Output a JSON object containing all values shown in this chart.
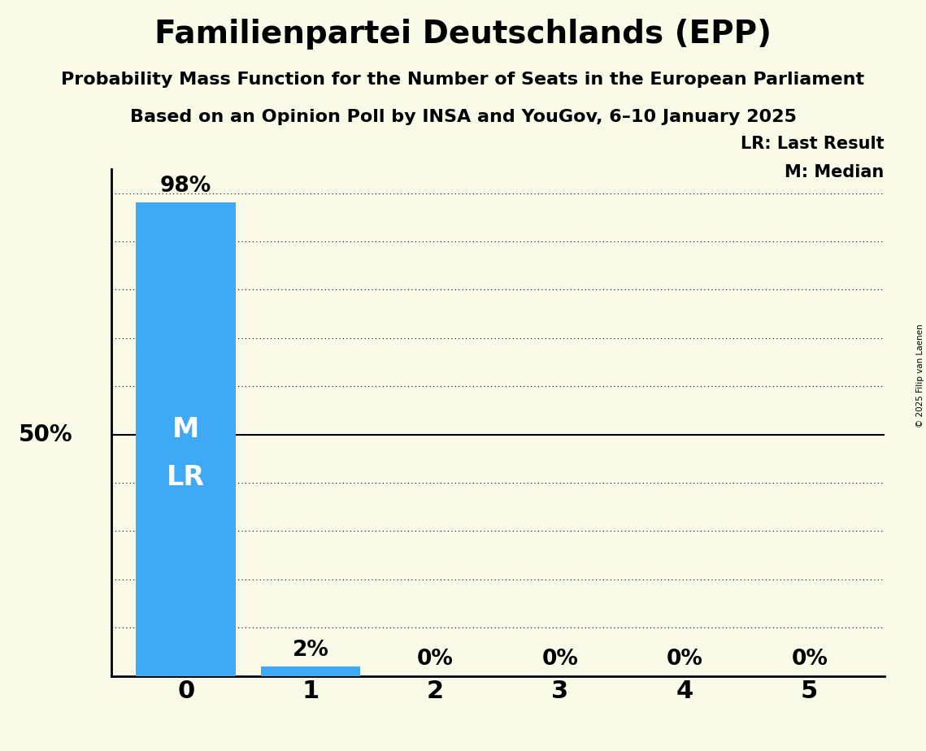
{
  "title": "Familienpartei Deutschlands (EPP)",
  "subtitle1": "Probability Mass Function for the Number of Seats in the European Parliament",
  "subtitle2": "Based on an Opinion Poll by INSA and YouGov, 6–10 January 2025",
  "copyright": "© 2025 Filip van Laenen",
  "categories": [
    0,
    1,
    2,
    3,
    4,
    5
  ],
  "values": [
    0.98,
    0.02,
    0.0,
    0.0,
    0.0,
    0.0
  ],
  "labels": [
    "98%",
    "2%",
    "0%",
    "0%",
    "0%",
    "0%"
  ],
  "bar_color": "#3fa9f5",
  "background_color": "#FAFAE8",
  "median": 0,
  "last_result": 0,
  "median_label": "M",
  "last_result_label": "LR",
  "legend_lr": "LR: Last Result",
  "legend_m": "M: Median",
  "yticks": [
    0.0,
    0.1,
    0.2,
    0.3,
    0.4,
    0.5,
    0.6,
    0.7,
    0.8,
    0.9,
    1.0
  ],
  "ylim": [
    0,
    1.05
  ],
  "xlim": [
    -0.6,
    5.6
  ]
}
